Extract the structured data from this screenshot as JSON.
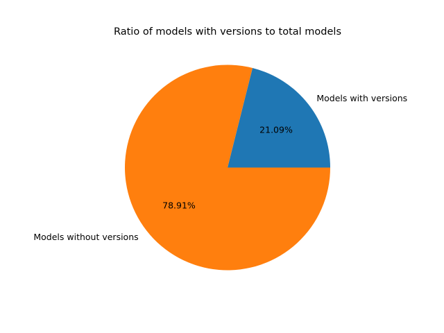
{
  "chart_data": {
    "type": "pie",
    "title": "Ratio of models with versions to total models",
    "labels": [
      "Models with versions",
      "Models without versions"
    ],
    "values": [
      21.09,
      78.91
    ],
    "percent_labels": [
      "21.09%",
      "78.91%"
    ],
    "colors": [
      "#1f77b4",
      "#ff7f0e"
    ],
    "start_angle_deg": 0,
    "direction": "counterclockwise",
    "legend": "none"
  }
}
